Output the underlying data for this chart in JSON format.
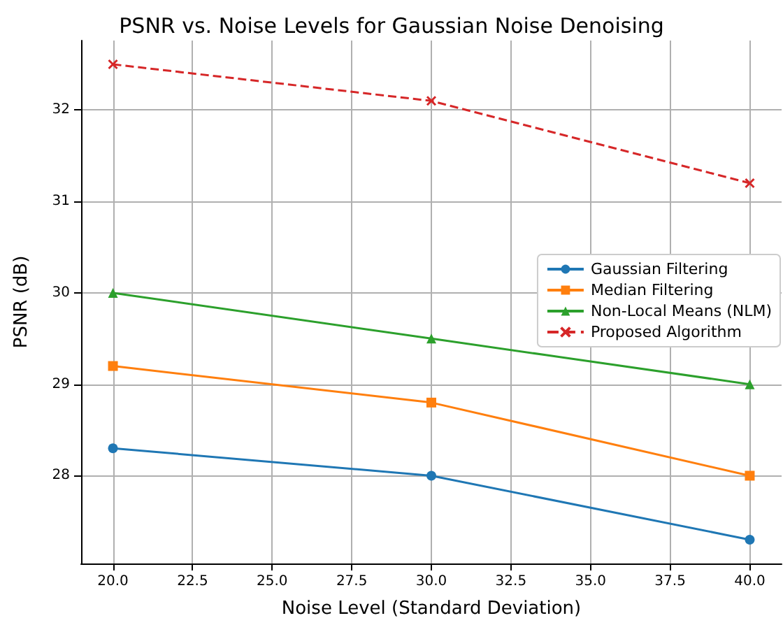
{
  "chart_data": {
    "type": "line",
    "title": "PSNR vs. Noise Levels for Gaussian Noise Denoising",
    "xlabel": "Noise Level (Standard Deviation)",
    "ylabel": "PSNR (dB)",
    "x": [
      20,
      30,
      40
    ],
    "series": [
      {
        "name": "Gaussian Filtering",
        "color": "#1f77b4",
        "values": [
          28.3,
          28.0,
          27.3
        ],
        "marker": "circle",
        "line_style": "solid"
      },
      {
        "name": "Median Filtering",
        "color": "#ff7f0e",
        "values": [
          29.2,
          28.8,
          28.0
        ],
        "marker": "square",
        "line_style": "solid"
      },
      {
        "name": "Non-Local Means (NLM)",
        "color": "#2ca02c",
        "values": [
          30.0,
          29.5,
          29.0
        ],
        "marker": "triangle",
        "line_style": "solid"
      },
      {
        "name": "Proposed Algorithm",
        "color": "#d62728",
        "values": [
          32.5,
          32.1,
          31.2
        ],
        "marker": "cross",
        "line_style": "dashed"
      }
    ],
    "xlim": [
      19,
      41
    ],
    "ylim": [
      27.04,
      32.76
    ],
    "xticks": [
      {
        "value": 20,
        "label": "20.0"
      },
      {
        "value": 22.5,
        "label": "22.5"
      },
      {
        "value": 25,
        "label": "25.0"
      },
      {
        "value": 27.5,
        "label": "27.5"
      },
      {
        "value": 30,
        "label": "30.0"
      },
      {
        "value": 32.5,
        "label": "32.5"
      },
      {
        "value": 35,
        "label": "35.0"
      },
      {
        "value": 37.5,
        "label": "37.5"
      },
      {
        "value": 40,
        "label": "40.0"
      }
    ],
    "yticks": [
      28,
      29,
      30,
      31,
      32
    ],
    "grid": true,
    "legend": "right"
  }
}
